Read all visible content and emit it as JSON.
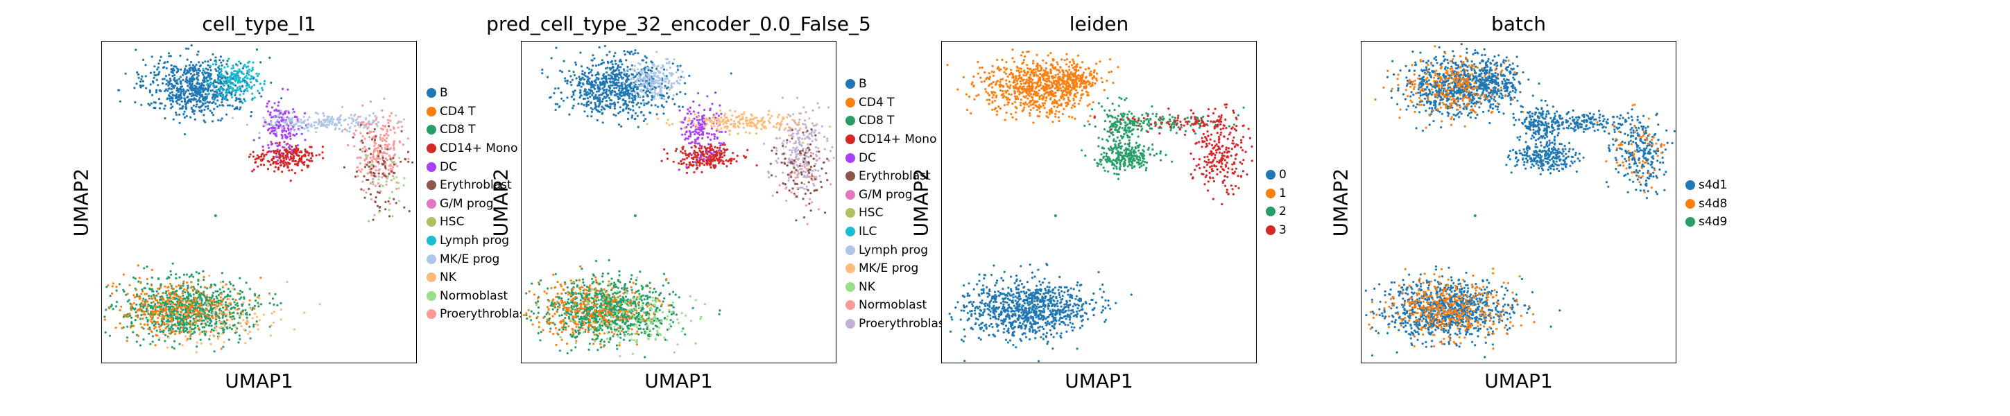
{
  "chart_data": [
    {
      "type": "scatter",
      "title": "cell_type_l1",
      "xlabel": "UMAP1",
      "ylabel": "UMAP2",
      "legend_placement": "right",
      "grid": false,
      "legend": [
        {
          "label": "B",
          "color": "#1f77b4"
        },
        {
          "label": "CD4 T",
          "color": "#ff7f0e"
        },
        {
          "label": "CD8 T",
          "color": "#279e68"
        },
        {
          "label": "CD14+ Mono",
          "color": "#d62728"
        },
        {
          "label": "DC",
          "color": "#aa40fc"
        },
        {
          "label": "Erythroblast",
          "color": "#8c564b"
        },
        {
          "label": "G/M prog",
          "color": "#e377c2"
        },
        {
          "label": "HSC",
          "color": "#b5bd61"
        },
        {
          "label": "Lymph prog",
          "color": "#17becf"
        },
        {
          "label": "MK/E prog",
          "color": "#aec7e8"
        },
        {
          "label": "NK",
          "color": "#ffbb78"
        },
        {
          "label": "Normoblast",
          "color": "#98df8a"
        },
        {
          "label": "Proerythroblast",
          "color": "#ff9896"
        }
      ]
    },
    {
      "type": "scatter",
      "title": "pred_cell_type_32_encoder_0.0_False_5",
      "xlabel": "UMAP1",
      "ylabel": "UMAP2",
      "legend_placement": "right",
      "grid": false,
      "legend": [
        {
          "label": "B",
          "color": "#1f77b4"
        },
        {
          "label": "CD4 T",
          "color": "#ff7f0e"
        },
        {
          "label": "CD8 T",
          "color": "#279e68"
        },
        {
          "label": "CD14+ Mono",
          "color": "#d62728"
        },
        {
          "label": "DC",
          "color": "#aa40fc"
        },
        {
          "label": "Erythroblast",
          "color": "#8c564b"
        },
        {
          "label": "G/M prog",
          "color": "#e377c2"
        },
        {
          "label": "HSC",
          "color": "#b5bd61"
        },
        {
          "label": "ILC",
          "color": "#17becf"
        },
        {
          "label": "Lymph prog",
          "color": "#aec7e8"
        },
        {
          "label": "MK/E prog",
          "color": "#ffbb78"
        },
        {
          "label": "NK",
          "color": "#98df8a"
        },
        {
          "label": "Normoblast",
          "color": "#ff9896"
        },
        {
          "label": "Proerythroblast",
          "color": "#c5b0d5"
        }
      ]
    },
    {
      "type": "scatter",
      "title": "leiden",
      "xlabel": "UMAP1",
      "ylabel": "UMAP2",
      "legend_placement": "right",
      "grid": false,
      "legend": [
        {
          "label": "0",
          "color": "#1f77b4"
        },
        {
          "label": "1",
          "color": "#ff7f0e"
        },
        {
          "label": "2",
          "color": "#279e68"
        },
        {
          "label": "3",
          "color": "#d62728"
        }
      ]
    },
    {
      "type": "scatter",
      "title": "batch",
      "xlabel": "UMAP1",
      "ylabel": "UMAP2",
      "legend_placement": "right",
      "grid": false,
      "legend": [
        {
          "label": "s4d1",
          "color": "#1f77b4"
        },
        {
          "label": "s4d8",
          "color": "#ff7f0e"
        },
        {
          "label": "s4d9",
          "color": "#279e68"
        }
      ]
    }
  ]
}
